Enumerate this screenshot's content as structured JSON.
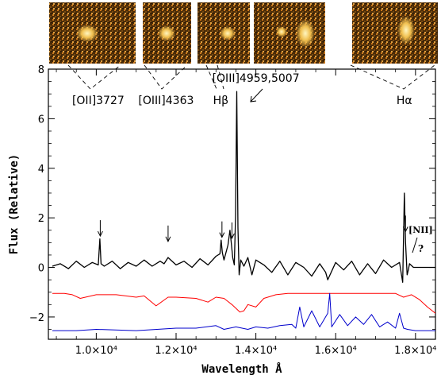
{
  "chart_data": {
    "type": "line",
    "title": "",
    "xlabel": "Wavelength Å",
    "ylabel": "Flux (Relative)",
    "xlim": [
      8800,
      18500
    ],
    "ylim": [
      -2.9,
      8.0
    ],
    "x_ticks": [
      {
        "value": 10000,
        "label": "1.0×10⁴"
      },
      {
        "value": 12000,
        "label": "1.2×10⁴"
      },
      {
        "value": 14000,
        "label": "1.4×10⁴"
      },
      {
        "value": 16000,
        "label": "1.6×10⁴"
      },
      {
        "value": 18000,
        "label": "1.8×10⁴"
      }
    ],
    "y_ticks": [
      {
        "value": -2,
        "label": "−2"
      },
      {
        "value": 0,
        "label": "0"
      },
      {
        "value": 2,
        "label": "2"
      },
      {
        "value": 4,
        "label": "4"
      },
      {
        "value": 6,
        "label": "6"
      },
      {
        "value": 8,
        "label": "8"
      }
    ],
    "series": [
      {
        "color": "#000000",
        "x": [
          8900,
          9100,
          9300,
          9500,
          9700,
          9900,
          10050,
          10090,
          10120,
          10200,
          10400,
          10600,
          10800,
          11000,
          11200,
          11400,
          11600,
          11700,
          11800,
          12000,
          12200,
          12400,
          12600,
          12800,
          13000,
          13100,
          13130,
          13160,
          13200,
          13300,
          13350,
          13380,
          13420,
          13460,
          13490,
          13520,
          13550,
          13580,
          13620,
          13700,
          13800,
          13900,
          14000,
          14200,
          14400,
          14600,
          14800,
          15000,
          15200,
          15400,
          15600,
          15750,
          15800,
          16000,
          16200,
          16400,
          16600,
          16800,
          17000,
          17200,
          17400,
          17600,
          17680,
          17720,
          17750,
          17790,
          17820,
          17850,
          17950,
          18200,
          18500
        ],
        "y": [
          0.05,
          0.15,
          -0.05,
          0.25,
          0.0,
          0.2,
          0.1,
          1.15,
          0.15,
          0.05,
          0.25,
          -0.05,
          0.2,
          0.05,
          0.3,
          0.05,
          0.25,
          0.15,
          0.4,
          0.1,
          0.25,
          0.0,
          0.35,
          0.1,
          0.45,
          0.55,
          1.1,
          0.6,
          0.3,
          0.9,
          1.5,
          1.05,
          0.4,
          0.1,
          2.1,
          7.1,
          1.6,
          -0.3,
          0.3,
          0.05,
          0.4,
          -0.3,
          0.3,
          0.1,
          -0.2,
          0.25,
          -0.3,
          0.2,
          0.0,
          -0.35,
          0.15,
          -0.2,
          -0.5,
          0.2,
          -0.1,
          0.25,
          -0.3,
          0.15,
          -0.25,
          0.3,
          0.0,
          0.2,
          -0.6,
          3.0,
          1.0,
          -0.3,
          -0.1,
          0.15,
          0.0,
          0.0,
          0.0
        ]
      },
      {
        "color": "#ff0000",
        "x": [
          8900,
          9200,
          9400,
          9600,
          10000,
          10500,
          11000,
          11200,
          11500,
          11800,
          12000,
          12500,
          12800,
          13000,
          13200,
          13400,
          13600,
          13700,
          13800,
          14000,
          14200,
          14500,
          14800,
          15000,
          15500,
          16000,
          16500,
          17000,
          17500,
          17700,
          17900,
          18100,
          18300,
          18500
        ],
        "y": [
          -1.05,
          -1.05,
          -1.1,
          -1.25,
          -1.1,
          -1.1,
          -1.2,
          -1.15,
          -1.55,
          -1.2,
          -1.2,
          -1.25,
          -1.4,
          -1.2,
          -1.25,
          -1.5,
          -1.8,
          -1.75,
          -1.5,
          -1.6,
          -1.25,
          -1.1,
          -1.05,
          -1.05,
          -1.05,
          -1.05,
          -1.05,
          -1.05,
          -1.05,
          -1.2,
          -1.1,
          -1.3,
          -1.6,
          -1.85
        ]
      },
      {
        "color": "#0000cc",
        "x": [
          8900,
          9500,
          10000,
          11000,
          12000,
          12500,
          13000,
          13200,
          13500,
          13800,
          14000,
          14300,
          14600,
          14900,
          15000,
          15100,
          15200,
          15400,
          15600,
          15800,
          15850,
          15900,
          16100,
          16300,
          16500,
          16700,
          16900,
          17100,
          17300,
          17500,
          17600,
          17700,
          17800,
          18000,
          18500
        ],
        "y": [
          -2.55,
          -2.55,
          -2.5,
          -2.55,
          -2.45,
          -2.45,
          -2.35,
          -2.5,
          -2.4,
          -2.5,
          -2.4,
          -2.45,
          -2.35,
          -2.3,
          -2.45,
          -1.6,
          -2.4,
          -1.75,
          -2.4,
          -1.85,
          -1.05,
          -2.4,
          -1.9,
          -2.35,
          -2.0,
          -2.3,
          -1.9,
          -2.4,
          -2.2,
          -2.45,
          -1.85,
          -2.45,
          -2.5,
          -2.55,
          -2.55
        ]
      }
    ],
    "arrow_x": [
      10100,
      11800,
      13150,
      13400,
      17750
    ],
    "line_labels": [
      {
        "text": "[OII]3727",
        "x": 10050
      },
      {
        "text": "[OIII]4363",
        "x": 11750
      },
      {
        "text": "Hβ",
        "x": 13120
      },
      {
        "text": "[OIII]4959,5007",
        "x": 14000
      },
      {
        "text": "Hα",
        "x": 17720
      }
    ],
    "nii_label": "[NII]",
    "nii_mark": "?"
  }
}
